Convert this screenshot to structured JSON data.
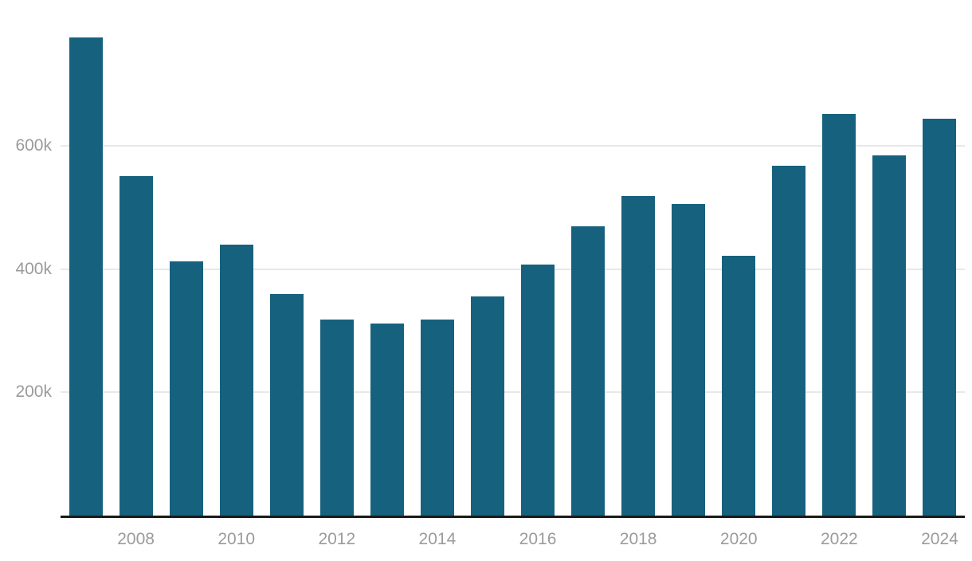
{
  "chart_data": {
    "type": "bar",
    "title": "",
    "xlabel": "",
    "ylabel": "",
    "categories": [
      "2007",
      "2008",
      "2009",
      "2010",
      "2011",
      "2012",
      "2013",
      "2014",
      "2015",
      "2016",
      "2017",
      "2018",
      "2019",
      "2020",
      "2021",
      "2022",
      "2023",
      "2024"
    ],
    "values": [
      776000,
      551000,
      412000,
      439000,
      359000,
      318000,
      312000,
      318000,
      355000,
      407000,
      469000,
      518000,
      505000,
      421000,
      567000,
      651000,
      585000,
      644000
    ],
    "ylim": [
      0,
      838000
    ],
    "y_ticks": [
      {
        "value": 200000,
        "label": "200k"
      },
      {
        "value": 400000,
        "label": "400k"
      },
      {
        "value": 600000,
        "label": "600k"
      }
    ],
    "x_tick_labels": [
      "2008",
      "2010",
      "2012",
      "2014",
      "2016",
      "2018",
      "2020",
      "2022",
      "2024"
    ],
    "grid": "horizontal",
    "legend": "none",
    "colors": {
      "bar": "#16627e",
      "gridline": "#e8e8e8",
      "axis_line": "#1a1a1a",
      "tick_label": "#9b9b9b",
      "background": "#ffffff"
    }
  }
}
